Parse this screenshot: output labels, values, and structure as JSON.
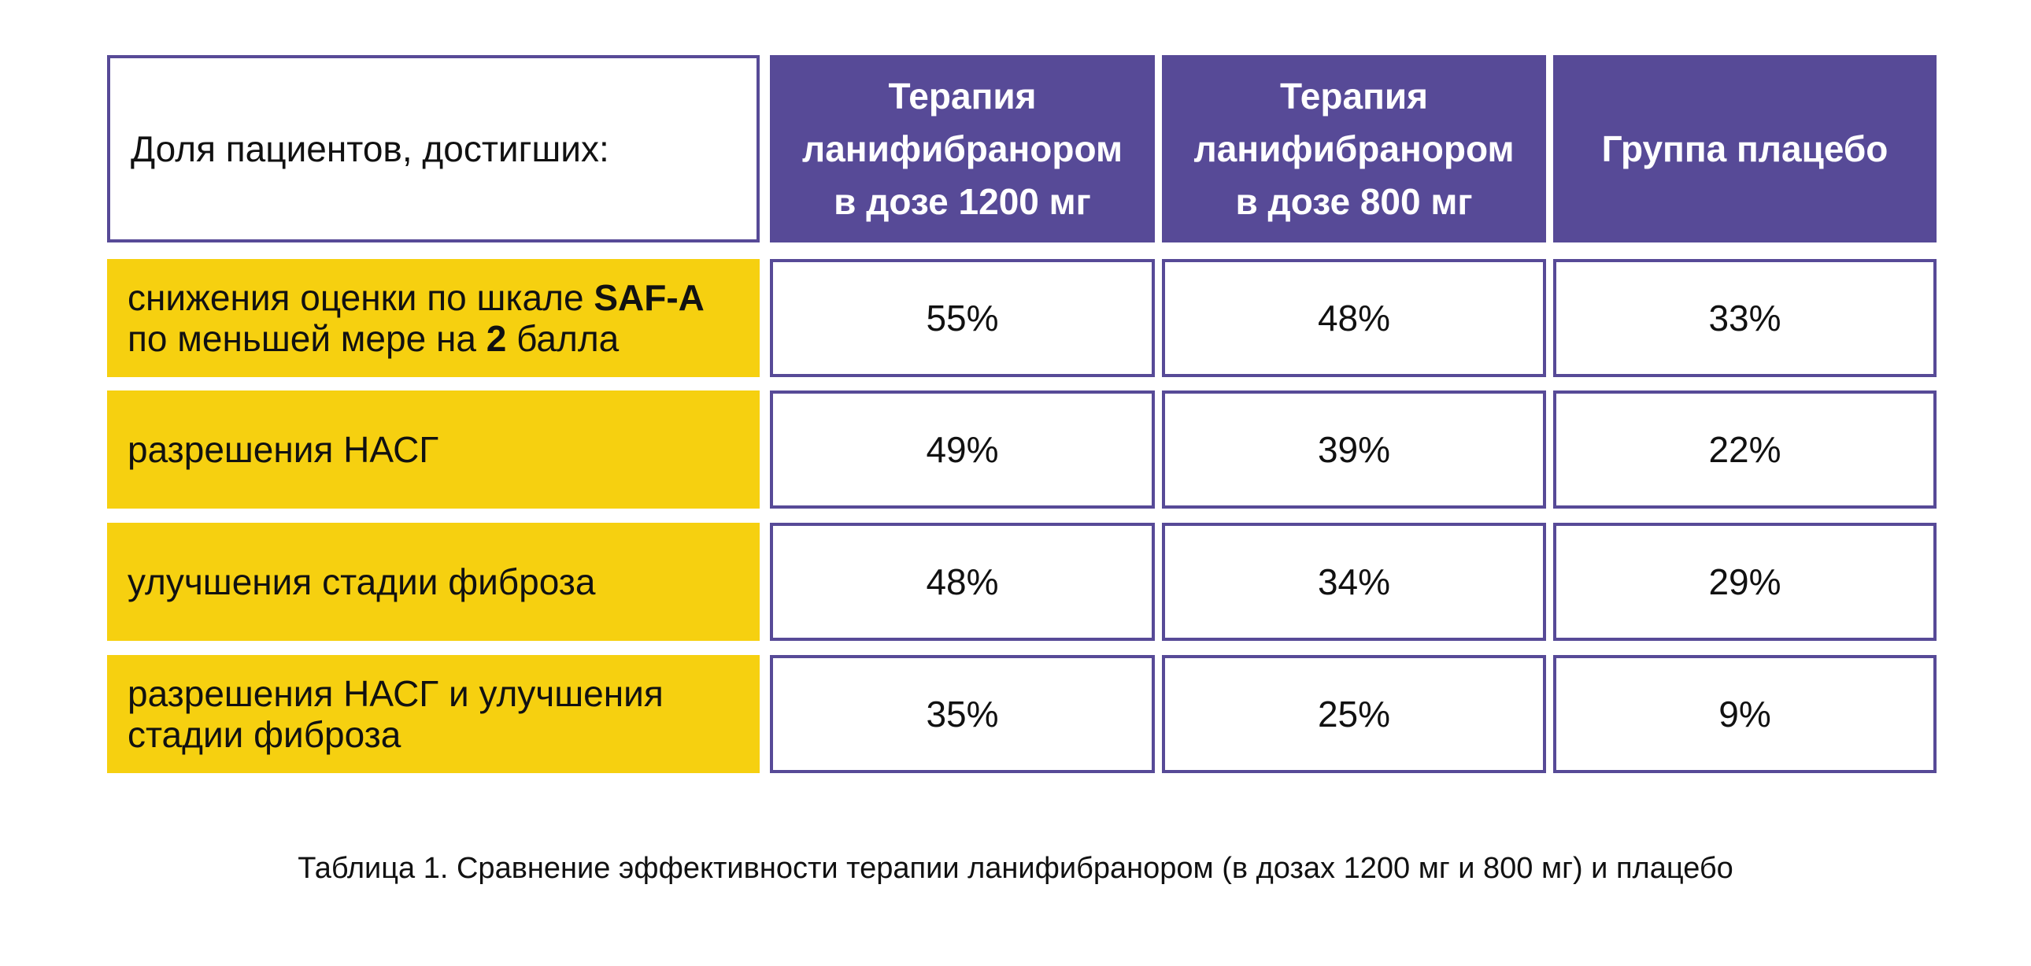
{
  "table": {
    "header": {
      "label": "Доля пациентов, достигших:",
      "columns": [
        [
          "Терапия",
          "ланифибранором",
          "в дозе 1200 мг"
        ],
        [
          "Терапия",
          "ланифибранором",
          "в дозе 800 мг"
        ],
        [
          "Группа плацебо"
        ]
      ]
    },
    "rows": [
      {
        "label_lines": [
          {
            "pre": "снижения оценки по шкале ",
            "bold": "SAF-A",
            "post": ""
          },
          {
            "pre": "по меньшей мере на ",
            "bold": "2",
            "post": " балла"
          }
        ],
        "values": [
          "55%",
          "48%",
          "33%"
        ]
      },
      {
        "label_lines": [
          {
            "pre": "разрешения НАСГ",
            "bold": "",
            "post": ""
          }
        ],
        "values": [
          "49%",
          "39%",
          "22%"
        ]
      },
      {
        "label_lines": [
          {
            "pre": "улучшения стадии фиброза",
            "bold": "",
            "post": ""
          }
        ],
        "values": [
          "48%",
          "34%",
          "29%"
        ]
      },
      {
        "label_lines": [
          {
            "pre": "разрешения НАСГ и улучшения",
            "bold": "",
            "post": ""
          },
          {
            "pre": "стадии фиброза",
            "bold": "",
            "post": ""
          }
        ],
        "values": [
          "35%",
          "25%",
          "9%"
        ]
      }
    ]
  },
  "caption": "Таблица 1. Сравнение эффективности терапии ланифибранором (в дозах 1200 мг и 800 мг) и плацебо",
  "colors": {
    "accent_purple": "#574a97",
    "highlight_yellow": "#f6d010"
  }
}
